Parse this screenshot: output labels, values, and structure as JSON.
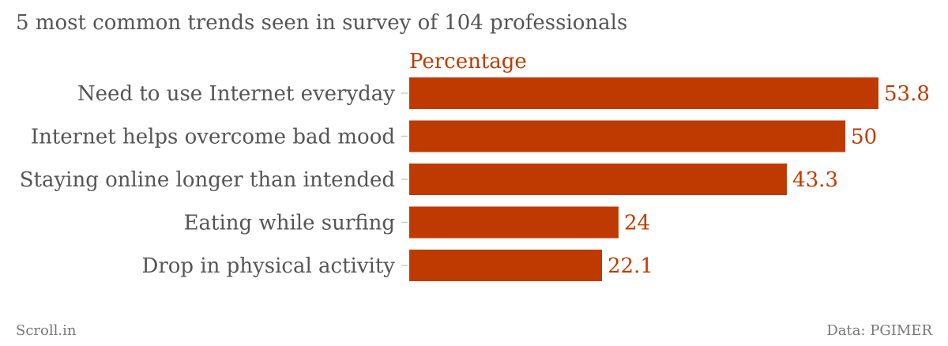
{
  "title": "5 most common trends seen in survey of 104 professionals",
  "footer": {
    "source_left": "Scroll.in",
    "source_right": "Data: PGIMER"
  },
  "colors": {
    "bar": "#bf3a00",
    "text": "#555555",
    "tick": "#cccccc"
  },
  "chart_data": {
    "type": "bar",
    "orientation": "horizontal",
    "categories": [
      "Need to use Internet everyday",
      "Internet helps overcome bad mood",
      "Staying online longer than intended",
      "Eating while surfing",
      "Drop in physical activity"
    ],
    "series": [
      {
        "name": "Percentage",
        "values": [
          53.8,
          50,
          43.3,
          24,
          22.1
        ]
      }
    ],
    "title": "5 most common trends seen in survey of 104 professionals",
    "xlim": [
      0,
      53.8
    ],
    "grid": false,
    "data_labels": true
  }
}
